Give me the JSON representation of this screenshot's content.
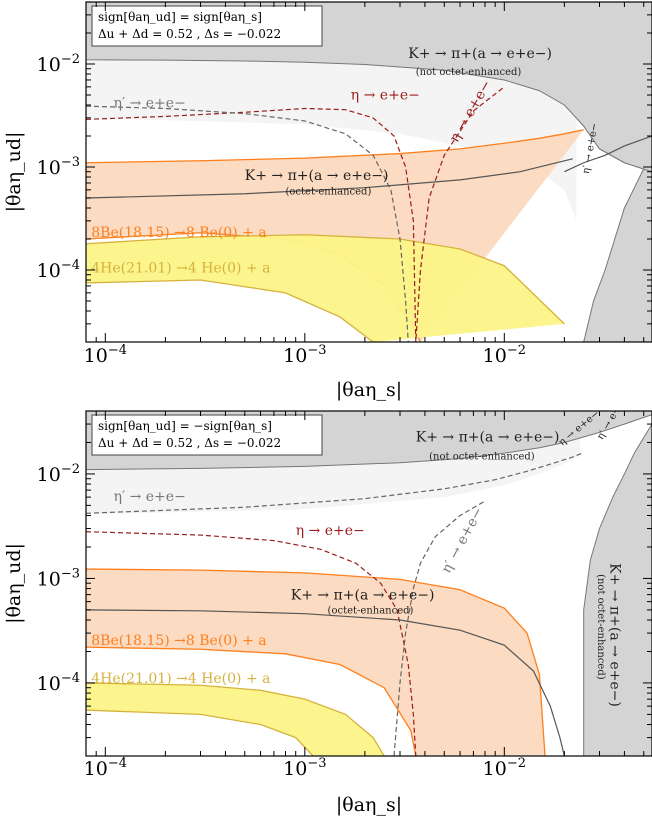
{
  "chart_data": [
    {
      "type": "line",
      "panel": "top",
      "xlabel": "|θaη_s|",
      "ylabel": "|θaη_ud|",
      "xscale": "log",
      "yscale": "log",
      "xlim": [
        8e-05,
        0.055
      ],
      "ylim": [
        2e-05,
        0.04
      ],
      "xticks": [
        "10^-4",
        "10^-3",
        "10^-2"
      ],
      "yticks": [
        "10^-4",
        "10^-3",
        "10^-2"
      ],
      "legend_box": [
        "sign[θaη_ud] = sign[θaη_s]",
        "Δu + Δd = 0.52 ,  Δs = −0.022"
      ],
      "colors": {
        "excluded": "#d4d4d4",
        "light": "#f4f4f4",
        "be8": "#ff7f1c",
        "be8_fill": "#fbd9be",
        "he4": "#d6b23c",
        "he4_fill": "#fcf488",
        "eta": "#9b1c1c",
        "etap": "#666666",
        "kaon": "#555555"
      },
      "regions": [
        {
          "name": "K+ → π+(a → e+e−) (not octet-enhanced) excluded",
          "fill": "excluded",
          "x": [
            8e-05,
            0.0002,
            0.0005,
            0.001,
            0.002,
            0.005,
            0.01,
            0.015,
            0.02,
            0.025,
            0.03,
            0.04,
            0.055
          ],
          "y": [
            0.011,
            0.0109,
            0.0107,
            0.0104,
            0.0099,
            0.0087,
            0.007,
            0.0055,
            0.004,
            0.0025,
            0.0015,
            0.0011,
            0.0009
          ]
        },
        {
          "name": "K+ kaon band right",
          "fill": "excluded",
          "x": [
            0.025,
            0.028,
            0.032,
            0.04,
            0.055
          ],
          "y": [
            2e-05,
            5e-05,
            0.0001,
            0.0004,
            0.0014
          ]
        },
        {
          "name": "ruled-out light region",
          "fill": "light",
          "x": [
            8e-05,
            0.001,
            0.003,
            0.006,
            0.01,
            0.015,
            0.02,
            0.023
          ],
          "y": [
            0.003,
            0.0026,
            0.0021,
            0.0016,
            0.0012,
            0.0009,
            0.0006,
            0.0003
          ]
        }
      ],
      "bands": [
        {
          "name": "8Be(18.15) → 8Be(0) + a",
          "color": "be8",
          "fill": "be8_fill",
          "upper_x": [
            8e-05,
            0.0003,
            0.001,
            0.003,
            0.006,
            0.01,
            0.015,
            0.02,
            0.025
          ],
          "upper_y": [
            0.0011,
            0.00115,
            0.00122,
            0.00135,
            0.0015,
            0.0017,
            0.0019,
            0.0021,
            0.0023
          ],
          "lower_x": [
            8e-05,
            0.0003,
            0.0008,
            0.0015,
            0.0025,
            0.0034,
            0.0038
          ],
          "lower_y": [
            0.0002,
            0.00023,
            0.0002,
            0.00014,
            7e-05,
            3e-05,
            2e-05
          ]
        },
        {
          "name": "4He(21.01) → 4He(0) + a",
          "color": "he4",
          "fill": "he4_fill",
          "upper_x": [
            8e-05,
            0.0003,
            0.001,
            0.003,
            0.006,
            0.01,
            0.02
          ],
          "upper_y": [
            0.00018,
            0.00021,
            0.00022,
            0.0002,
            0.00016,
            0.00011,
            3e-05
          ],
          "lower_x": [
            8e-05,
            0.0003,
            0.0008,
            0.0015,
            0.0022
          ],
          "lower_y": [
            7.5e-05,
            8e-05,
            6e-05,
            3.5e-05,
            2e-05
          ]
        }
      ],
      "series": [
        {
          "name": "η → e+e−",
          "color": "eta",
          "dashed": true,
          "x": [
            8e-05,
            0.0002,
            0.0005,
            0.001,
            0.0016,
            0.0022,
            0.0028,
            0.0032,
            0.0035,
            0.0036,
            0.0038,
            0.0042,
            0.005,
            0.007,
            0.01
          ],
          "y": [
            0.0029,
            0.0031,
            0.0034,
            0.0037,
            0.0036,
            0.003,
            0.002,
            0.001,
            0.0003,
            2e-05,
            0.0001,
            0.0005,
            0.0013,
            0.0035,
            0.006
          ]
        },
        {
          "name": "η′ → e+e−",
          "color": "etap",
          "dashed": true,
          "x": [
            8e-05,
            0.0002,
            0.0005,
            0.001,
            0.0016,
            0.0022,
            0.0027,
            0.003,
            0.0032,
            0.0033
          ],
          "y": [
            0.0039,
            0.0037,
            0.0033,
            0.0028,
            0.0021,
            0.0013,
            0.0006,
            0.0002,
            5e-05,
            2e-05
          ]
        },
        {
          "name": "K+ → π+(a → e+e−) (octet-enhanced)",
          "color": "kaon",
          "dashed": false,
          "x": [
            8e-05,
            0.0005,
            0.002,
            0.006,
            0.012,
            0.022
          ],
          "y": [
            0.0005,
            0.00055,
            0.00063,
            0.00075,
            0.0009,
            0.0012
          ]
        },
        {
          "name": "η → e+e− (right)",
          "color": "kaon",
          "dashed": false,
          "x": [
            0.02,
            0.025,
            0.032,
            0.04,
            0.055
          ],
          "y": [
            0.0009,
            0.0011,
            0.0013,
            0.0016,
            0.002
          ]
        }
      ],
      "annotations": [
        {
          "text": "K+ → π+(a → e+e−)",
          "x": 0.0033,
          "y": 0.0115,
          "color": "#222222"
        },
        {
          "text": "(not octet-enhanced)",
          "x": 0.0036,
          "y": 0.0078,
          "color": "#222222",
          "small": true
        },
        {
          "text": "η′ → e+e−",
          "x": 0.00011,
          "y": 0.0038,
          "color": "#777777"
        },
        {
          "text": "η → e+e−",
          "x": 0.0017,
          "y": 0.0045,
          "color": "#9b1c1c"
        },
        {
          "text": "η → e+e−",
          "x": 0.0058,
          "y": 0.0017,
          "color": "#9b1c1c",
          "rotate": -60
        },
        {
          "text": "K+ → π+(a → e+e−)",
          "x": 0.0005,
          "y": 0.00075,
          "color": "#222222"
        },
        {
          "text": "(octet-enhanced)",
          "x": 0.0008,
          "y": 0.00054,
          "color": "#222222",
          "small": true
        },
        {
          "text": "8Be(18.15) →8 Be(0) + a",
          "x": 8.5e-05,
          "y": 0.00021,
          "color": "#ff7f1c"
        },
        {
          "text": "4He(21.01) →4 He(0) + a",
          "x": 8.5e-05,
          "y": 9.5e-05,
          "color": "#d6b23c"
        },
        {
          "text": "η′ → e+e−",
          "x": 0.0265,
          "y": 0.00085,
          "color": "#222222",
          "rotate": -80,
          "small": true
        }
      ]
    },
    {
      "type": "line",
      "panel": "bottom",
      "xlabel": "|θaη_s|",
      "ylabel": "|θaη_ud|",
      "xscale": "log",
      "yscale": "log",
      "xlim": [
        8e-05,
        0.055
      ],
      "ylim": [
        2e-05,
        0.04
      ],
      "xticks": [
        "10^-4",
        "10^-3",
        "10^-2"
      ],
      "yticks": [
        "10^-4",
        "10^-3",
        "10^-2"
      ],
      "legend_box": [
        "sign[θaη_ud] = −sign[θaη_s]",
        "Δu + Δd = 0.52 ,  Δs = −0.022"
      ],
      "colors": {
        "excluded": "#d4d4d4",
        "light": "#f4f4f4",
        "be8": "#ff7f1c",
        "be8_fill": "#fbd9be",
        "he4": "#d6b23c",
        "he4_fill": "#fcf488",
        "eta": "#9b1c1c",
        "etap": "#666666",
        "kaon": "#555555"
      },
      "regions": [
        {
          "name": "K+ → π+(a → e+e−) (not octet-enhanced) excluded top",
          "fill": "excluded",
          "x": [
            8e-05,
            0.0003,
            0.001,
            0.003,
            0.006,
            0.01,
            0.015,
            0.02,
            0.03,
            0.04,
            0.055
          ],
          "y": [
            0.011,
            0.0113,
            0.0118,
            0.0128,
            0.014,
            0.0158,
            0.0178,
            0.02,
            0.025,
            0.03,
            0.037
          ]
        },
        {
          "name": "K+ → π+(a → e+e−) (not octet-enhanced) excluded right",
          "fill": "excluded",
          "x": [
            0.025,
            0.025,
            0.027,
            0.03,
            0.035,
            0.04,
            0.045,
            0.055
          ],
          "y": [
            2e-05,
            0.0005,
            0.0015,
            0.003,
            0.006,
            0.01,
            0.016,
            0.03
          ]
        },
        {
          "name": "ruled-out light region",
          "fill": "light",
          "x": [
            8e-05,
            0.001,
            0.005,
            0.01,
            0.015,
            0.02,
            0.024
          ],
          "y": [
            0.0041,
            0.0046,
            0.006,
            0.0078,
            0.01,
            0.0125,
            0.015
          ]
        }
      ],
      "bands": [
        {
          "name": "8Be(18.15) → 8Be(0) + a",
          "color": "be8",
          "fill": "be8_fill",
          "upper_x": [
            8e-05,
            0.0003,
            0.001,
            0.003,
            0.006,
            0.01,
            0.013,
            0.015,
            0.016
          ],
          "upper_y": [
            0.00123,
            0.0012,
            0.00113,
            0.00098,
            0.00078,
            0.00052,
            0.0003,
            0.00012,
            2e-05
          ],
          "lower_x": [
            8e-05,
            0.0003,
            0.0008,
            0.0015,
            0.0025,
            0.0034,
            0.0036
          ],
          "lower_y": [
            0.00022,
            0.00021,
            0.00019,
            0.00015,
            9e-05,
            3.5e-05,
            2e-05
          ]
        },
        {
          "name": "4He(21.01) → 4He(0) + a",
          "color": "he4",
          "fill": "he4_fill",
          "upper_x": [
            8e-05,
            0.0003,
            0.0006,
            0.001,
            0.0016,
            0.0022,
            0.0025
          ],
          "upper_y": [
            0.0001,
            9.5e-05,
            8.5e-05,
            7e-05,
            5e-05,
            3e-05,
            2e-05
          ],
          "lower_x": [
            8e-05,
            0.0003,
            0.0006,
            0.0009,
            0.0011
          ],
          "lower_y": [
            5.5e-05,
            5e-05,
            4e-05,
            3e-05,
            2e-05
          ]
        }
      ],
      "series": [
        {
          "name": "η → e+e−",
          "color": "eta",
          "dashed": true,
          "x": [
            8e-05,
            0.0003,
            0.0007,
            0.0012,
            0.0018,
            0.0024,
            0.0029,
            0.0033,
            0.0035,
            0.0036
          ],
          "y": [
            0.0028,
            0.0026,
            0.0023,
            0.0019,
            0.0014,
            0.0009,
            0.0005,
            0.00015,
            5e-05,
            2e-05
          ]
        },
        {
          "name": "η′ → e+e−",
          "color": "etap",
          "dashed": true,
          "x": [
            8e-05,
            0.0005,
            0.002,
            0.005,
            0.009,
            0.013,
            0.017,
            0.022,
            0.025
          ],
          "y": [
            0.0042,
            0.0048,
            0.0058,
            0.0072,
            0.0088,
            0.0106,
            0.0124,
            0.0145,
            0.016
          ]
        },
        {
          "name": "η′ → e+e− (vertical)",
          "color": "etap",
          "dashed": true,
          "x": [
            0.0028,
            0.003,
            0.0032,
            0.0035,
            0.0038,
            0.0045,
            0.006,
            0.008
          ],
          "y": [
            2e-05,
            0.0001,
            0.0003,
            0.0008,
            0.0014,
            0.0025,
            0.004,
            0.0055
          ]
        },
        {
          "name": "K+ → π+(a → e+e−) (octet-enhanced)",
          "color": "kaon",
          "dashed": false,
          "x": [
            8e-05,
            0.0003,
            0.001,
            0.003,
            0.006,
            0.01,
            0.014,
            0.017,
            0.019,
            0.02
          ],
          "y": [
            0.0005,
            0.00049,
            0.00046,
            0.0004,
            0.00032,
            0.00023,
            0.00013,
            6e-05,
            3e-05,
            2e-05
          ]
        }
      ],
      "annotations": [
        {
          "text": "K+ → π+(a → e+e−)",
          "x": 0.0036,
          "y": 0.0205,
          "color": "#222222"
        },
        {
          "text": "(not octet-enhanced)",
          "x": 0.0042,
          "y": 0.0138,
          "color": "#222222",
          "small": true
        },
        {
          "text": "η′ → e+e−",
          "x": 0.00011,
          "y": 0.0055,
          "color": "#777777"
        },
        {
          "text": "η → e+e−",
          "x": 0.0009,
          "y": 0.0026,
          "color": "#9b1c1c"
        },
        {
          "text": "η′ → e+e−",
          "x": 0.0053,
          "y": 0.0011,
          "color": "#777777",
          "rotate": -62
        },
        {
          "text": "K+ → π+(a → e+e−)",
          "x": 0.00085,
          "y": 0.00063,
          "color": "#222222"
        },
        {
          "text": "(octet-enhanced)",
          "x": 0.0013,
          "y": 0.00046,
          "color": "#222222",
          "small": true
        },
        {
          "text": "8Be(18.15) →8 Be(0) + a",
          "x": 8.5e-05,
          "y": 0.00023,
          "color": "#ff7f1c"
        },
        {
          "text": "4He(21.01) →4 He(0) + a",
          "x": 8.5e-05,
          "y": 0.0001,
          "color": "#d6b23c"
        },
        {
          "text": "η → e+e−",
          "x": 0.0195,
          "y": 0.0185,
          "color": "#222222",
          "rotate": -40,
          "small": true
        },
        {
          "text": "η′ → e+e−",
          "x": 0.031,
          "y": 0.021,
          "color": "#222222",
          "rotate": -60,
          "small": true
        },
        {
          "text": "K+ → π+(a → e+e−)",
          "x": 0.034,
          "y": 0.0014,
          "color": "#222222",
          "rotate": 90
        },
        {
          "text": "(not octet-enhanced)",
          "x": 0.0295,
          "y": 0.0011,
          "color": "#222222",
          "rotate": 90,
          "small": true
        }
      ]
    }
  ]
}
